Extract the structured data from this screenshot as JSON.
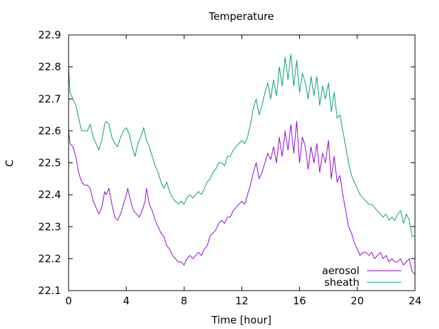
{
  "chart_data": {
    "type": "line",
    "title": "Temperature",
    "xlabel": "Time [hour]",
    "ylabel": "C",
    "xlim": [
      0,
      24
    ],
    "ylim": [
      22.1,
      22.9
    ],
    "xticks": [
      0,
      4,
      8,
      12,
      16,
      20,
      24
    ],
    "yticks": [
      22.1,
      22.2,
      22.3,
      22.4,
      22.5,
      22.6,
      22.7,
      22.8,
      22.9
    ],
    "grid": false,
    "legend_position": "bottom-right",
    "series": [
      {
        "name": "aerosol",
        "color": "#9400d3",
        "points": [
          [
            0.0,
            22.6
          ],
          [
            0.1,
            22.56
          ],
          [
            0.3,
            22.55
          ],
          [
            0.5,
            22.52
          ],
          [
            0.7,
            22.47
          ],
          [
            0.9,
            22.44
          ],
          [
            1.1,
            22.43
          ],
          [
            1.3,
            22.43
          ],
          [
            1.5,
            22.42
          ],
          [
            1.7,
            22.38
          ],
          [
            1.9,
            22.36
          ],
          [
            2.1,
            22.34
          ],
          [
            2.3,
            22.36
          ],
          [
            2.5,
            22.41
          ],
          [
            2.6,
            22.4
          ],
          [
            2.8,
            22.42
          ],
          [
            3.0,
            22.37
          ],
          [
            3.2,
            22.33
          ],
          [
            3.4,
            22.32
          ],
          [
            3.6,
            22.34
          ],
          [
            3.8,
            22.37
          ],
          [
            4.0,
            22.4
          ],
          [
            4.1,
            22.42
          ],
          [
            4.3,
            22.38
          ],
          [
            4.5,
            22.35
          ],
          [
            4.7,
            22.34
          ],
          [
            4.9,
            22.33
          ],
          [
            5.1,
            22.35
          ],
          [
            5.3,
            22.38
          ],
          [
            5.4,
            22.42
          ],
          [
            5.6,
            22.37
          ],
          [
            5.8,
            22.35
          ],
          [
            6.0,
            22.32
          ],
          [
            6.2,
            22.3
          ],
          [
            6.4,
            22.28
          ],
          [
            6.6,
            22.27
          ],
          [
            6.8,
            22.24
          ],
          [
            7.0,
            22.23
          ],
          [
            7.2,
            22.21
          ],
          [
            7.4,
            22.2
          ],
          [
            7.6,
            22.19
          ],
          [
            7.8,
            22.19
          ],
          [
            8.0,
            22.18
          ],
          [
            8.2,
            22.2
          ],
          [
            8.4,
            22.21
          ],
          [
            8.6,
            22.2
          ],
          [
            8.8,
            22.21
          ],
          [
            9.0,
            22.22
          ],
          [
            9.2,
            22.21
          ],
          [
            9.4,
            22.23
          ],
          [
            9.6,
            22.24
          ],
          [
            9.8,
            22.27
          ],
          [
            10.0,
            22.28
          ],
          [
            10.2,
            22.29
          ],
          [
            10.4,
            22.31
          ],
          [
            10.6,
            22.32
          ],
          [
            10.8,
            22.31
          ],
          [
            11.0,
            22.33
          ],
          [
            11.2,
            22.33
          ],
          [
            11.4,
            22.35
          ],
          [
            11.6,
            22.36
          ],
          [
            11.8,
            22.37
          ],
          [
            12.0,
            22.38
          ],
          [
            12.2,
            22.37
          ],
          [
            12.4,
            22.4
          ],
          [
            12.6,
            22.43
          ],
          [
            12.8,
            22.47
          ],
          [
            13.0,
            22.5
          ],
          [
            13.2,
            22.45
          ],
          [
            13.4,
            22.47
          ],
          [
            13.6,
            22.5
          ],
          [
            13.8,
            22.53
          ],
          [
            14.0,
            22.51
          ],
          [
            14.2,
            22.55
          ],
          [
            14.4,
            22.5
          ],
          [
            14.6,
            22.58
          ],
          [
            14.8,
            22.52
          ],
          [
            15.0,
            22.6
          ],
          [
            15.2,
            22.54
          ],
          [
            15.4,
            22.62
          ],
          [
            15.6,
            22.53
          ],
          [
            15.8,
            22.63
          ],
          [
            16.0,
            22.5
          ],
          [
            16.2,
            22.58
          ],
          [
            16.4,
            22.55
          ],
          [
            16.6,
            22.48
          ],
          [
            16.8,
            22.55
          ],
          [
            17.0,
            22.5
          ],
          [
            17.2,
            22.56
          ],
          [
            17.4,
            22.47
          ],
          [
            17.6,
            22.53
          ],
          [
            17.8,
            22.5
          ],
          [
            18.0,
            22.57
          ],
          [
            18.2,
            22.45
          ],
          [
            18.4,
            22.52
          ],
          [
            18.6,
            22.44
          ],
          [
            18.8,
            22.46
          ],
          [
            19.0,
            22.4
          ],
          [
            19.2,
            22.35
          ],
          [
            19.4,
            22.3
          ],
          [
            19.6,
            22.28
          ],
          [
            19.8,
            22.25
          ],
          [
            20.0,
            22.23
          ],
          [
            20.2,
            22.21
          ],
          [
            20.4,
            22.22
          ],
          [
            20.6,
            22.22
          ],
          [
            20.8,
            22.21
          ],
          [
            21.0,
            22.22
          ],
          [
            21.2,
            22.2
          ],
          [
            21.4,
            22.21
          ],
          [
            21.6,
            22.22
          ],
          [
            21.8,
            22.2
          ],
          [
            22.0,
            22.21
          ],
          [
            22.2,
            22.19
          ],
          [
            22.4,
            22.2
          ],
          [
            22.6,
            22.19
          ],
          [
            22.8,
            22.19
          ],
          [
            23.0,
            22.2
          ],
          [
            23.2,
            22.18
          ],
          [
            23.4,
            22.19
          ],
          [
            23.6,
            22.2
          ],
          [
            23.8,
            22.16
          ],
          [
            24.0,
            22.15
          ]
        ]
      },
      {
        "name": "sheath",
        "color": "#009e73",
        "points": [
          [
            0.0,
            22.8
          ],
          [
            0.1,
            22.72
          ],
          [
            0.3,
            22.7
          ],
          [
            0.5,
            22.68
          ],
          [
            0.7,
            22.64
          ],
          [
            0.9,
            22.6
          ],
          [
            1.1,
            22.6
          ],
          [
            1.3,
            22.6
          ],
          [
            1.5,
            22.62
          ],
          [
            1.7,
            22.58
          ],
          [
            1.9,
            22.56
          ],
          [
            2.1,
            22.54
          ],
          [
            2.3,
            22.57
          ],
          [
            2.5,
            22.62
          ],
          [
            2.6,
            22.63
          ],
          [
            2.8,
            22.62
          ],
          [
            3.0,
            22.58
          ],
          [
            3.2,
            22.56
          ],
          [
            3.4,
            22.55
          ],
          [
            3.6,
            22.58
          ],
          [
            3.8,
            22.6
          ],
          [
            4.0,
            22.61
          ],
          [
            4.2,
            22.59
          ],
          [
            4.4,
            22.55
          ],
          [
            4.6,
            22.52
          ],
          [
            4.8,
            22.56
          ],
          [
            5.0,
            22.58
          ],
          [
            5.2,
            22.61
          ],
          [
            5.4,
            22.57
          ],
          [
            5.6,
            22.55
          ],
          [
            5.8,
            22.52
          ],
          [
            6.0,
            22.49
          ],
          [
            6.2,
            22.47
          ],
          [
            6.4,
            22.44
          ],
          [
            6.6,
            22.42
          ],
          [
            6.8,
            22.44
          ],
          [
            7.0,
            22.41
          ],
          [
            7.2,
            22.39
          ],
          [
            7.4,
            22.38
          ],
          [
            7.6,
            22.37
          ],
          [
            7.8,
            22.38
          ],
          [
            8.0,
            22.37
          ],
          [
            8.2,
            22.39
          ],
          [
            8.4,
            22.4
          ],
          [
            8.6,
            22.39
          ],
          [
            8.8,
            22.4
          ],
          [
            9.0,
            22.41
          ],
          [
            9.2,
            22.4
          ],
          [
            9.4,
            22.42
          ],
          [
            9.6,
            22.44
          ],
          [
            9.8,
            22.45
          ],
          [
            10.0,
            22.47
          ],
          [
            10.2,
            22.48
          ],
          [
            10.4,
            22.5
          ],
          [
            10.6,
            22.5
          ],
          [
            10.8,
            22.49
          ],
          [
            11.0,
            22.52
          ],
          [
            11.2,
            22.52
          ],
          [
            11.4,
            22.54
          ],
          [
            11.6,
            22.55
          ],
          [
            11.8,
            22.56
          ],
          [
            12.0,
            22.57
          ],
          [
            12.2,
            22.56
          ],
          [
            12.4,
            22.58
          ],
          [
            12.6,
            22.62
          ],
          [
            12.8,
            22.67
          ],
          [
            13.0,
            22.7
          ],
          [
            13.2,
            22.65
          ],
          [
            13.4,
            22.68
          ],
          [
            13.6,
            22.72
          ],
          [
            13.8,
            22.75
          ],
          [
            14.0,
            22.7
          ],
          [
            14.2,
            22.76
          ],
          [
            14.4,
            22.71
          ],
          [
            14.6,
            22.8
          ],
          [
            14.8,
            22.74
          ],
          [
            15.0,
            22.83
          ],
          [
            15.2,
            22.76
          ],
          [
            15.4,
            22.84
          ],
          [
            15.6,
            22.74
          ],
          [
            15.8,
            22.82
          ],
          [
            16.0,
            22.72
          ],
          [
            16.2,
            22.78
          ],
          [
            16.4,
            22.75
          ],
          [
            16.6,
            22.7
          ],
          [
            16.8,
            22.77
          ],
          [
            17.0,
            22.71
          ],
          [
            17.2,
            22.77
          ],
          [
            17.4,
            22.68
          ],
          [
            17.6,
            22.74
          ],
          [
            17.8,
            22.7
          ],
          [
            18.0,
            22.75
          ],
          [
            18.2,
            22.66
          ],
          [
            18.4,
            22.72
          ],
          [
            18.6,
            22.64
          ],
          [
            18.8,
            22.65
          ],
          [
            19.0,
            22.6
          ],
          [
            19.2,
            22.55
          ],
          [
            19.4,
            22.5
          ],
          [
            19.6,
            22.46
          ],
          [
            19.8,
            22.44
          ],
          [
            20.0,
            22.42
          ],
          [
            20.2,
            22.4
          ],
          [
            20.4,
            22.39
          ],
          [
            20.6,
            22.38
          ],
          [
            20.8,
            22.37
          ],
          [
            21.0,
            22.37
          ],
          [
            21.2,
            22.36
          ],
          [
            21.4,
            22.35
          ],
          [
            21.6,
            22.34
          ],
          [
            21.8,
            22.33
          ],
          [
            22.0,
            22.34
          ],
          [
            22.2,
            22.32
          ],
          [
            22.4,
            22.33
          ],
          [
            22.6,
            22.32
          ],
          [
            22.8,
            22.34
          ],
          [
            23.0,
            22.35
          ],
          [
            23.2,
            22.31
          ],
          [
            23.4,
            22.34
          ],
          [
            23.6,
            22.32
          ],
          [
            23.8,
            22.27
          ],
          [
            24.0,
            22.27
          ]
        ]
      }
    ]
  }
}
